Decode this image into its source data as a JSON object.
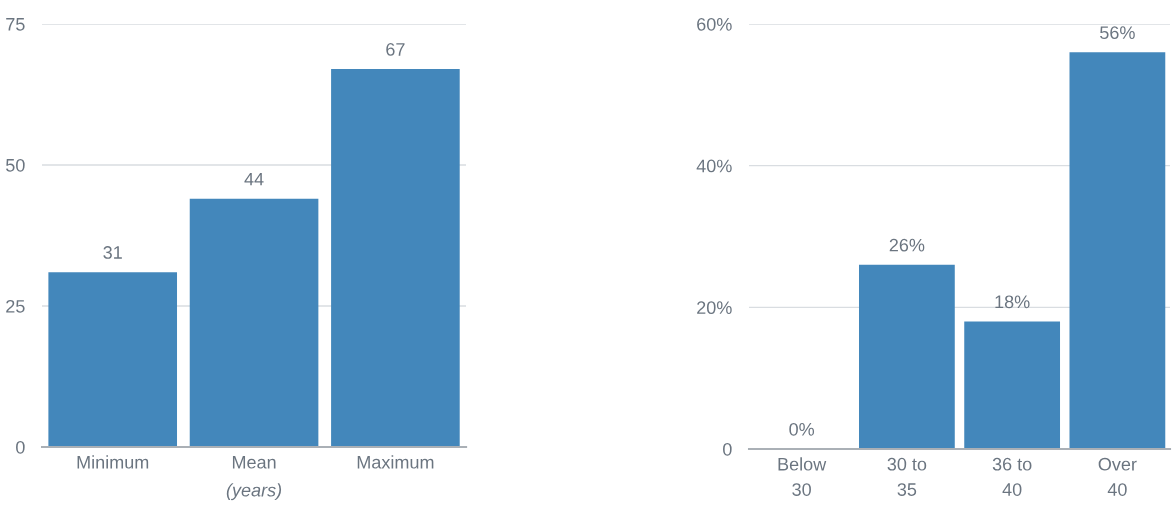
{
  "chart_data": [
    {
      "type": "bar",
      "categories": [
        "Minimum",
        "Mean",
        "Maximum"
      ],
      "values": [
        31,
        44,
        67
      ],
      "color": "#4387bb",
      "xlabel": "(years)",
      "ylim": [
        0,
        75
      ],
      "yticks": [
        0,
        25,
        50,
        75
      ],
      "grid": "y",
      "data_labels": true
    },
    {
      "type": "bar",
      "categories": [
        "Below\n30",
        "30 to\n35",
        "36 to\n40",
        "Over\n40"
      ],
      "values": [
        0,
        26,
        18,
        56
      ],
      "color": "#4387bb",
      "ylim": [
        0,
        60
      ],
      "yticks": [
        0,
        {
          "value": 20,
          "label": "20%"
        },
        {
          "value": 40,
          "label": "40%"
        },
        {
          "value": 60,
          "label": "60%"
        }
      ],
      "grid": "y",
      "value_labels": [
        "0%",
        "26%",
        "18%",
        "56%"
      ]
    }
  ]
}
